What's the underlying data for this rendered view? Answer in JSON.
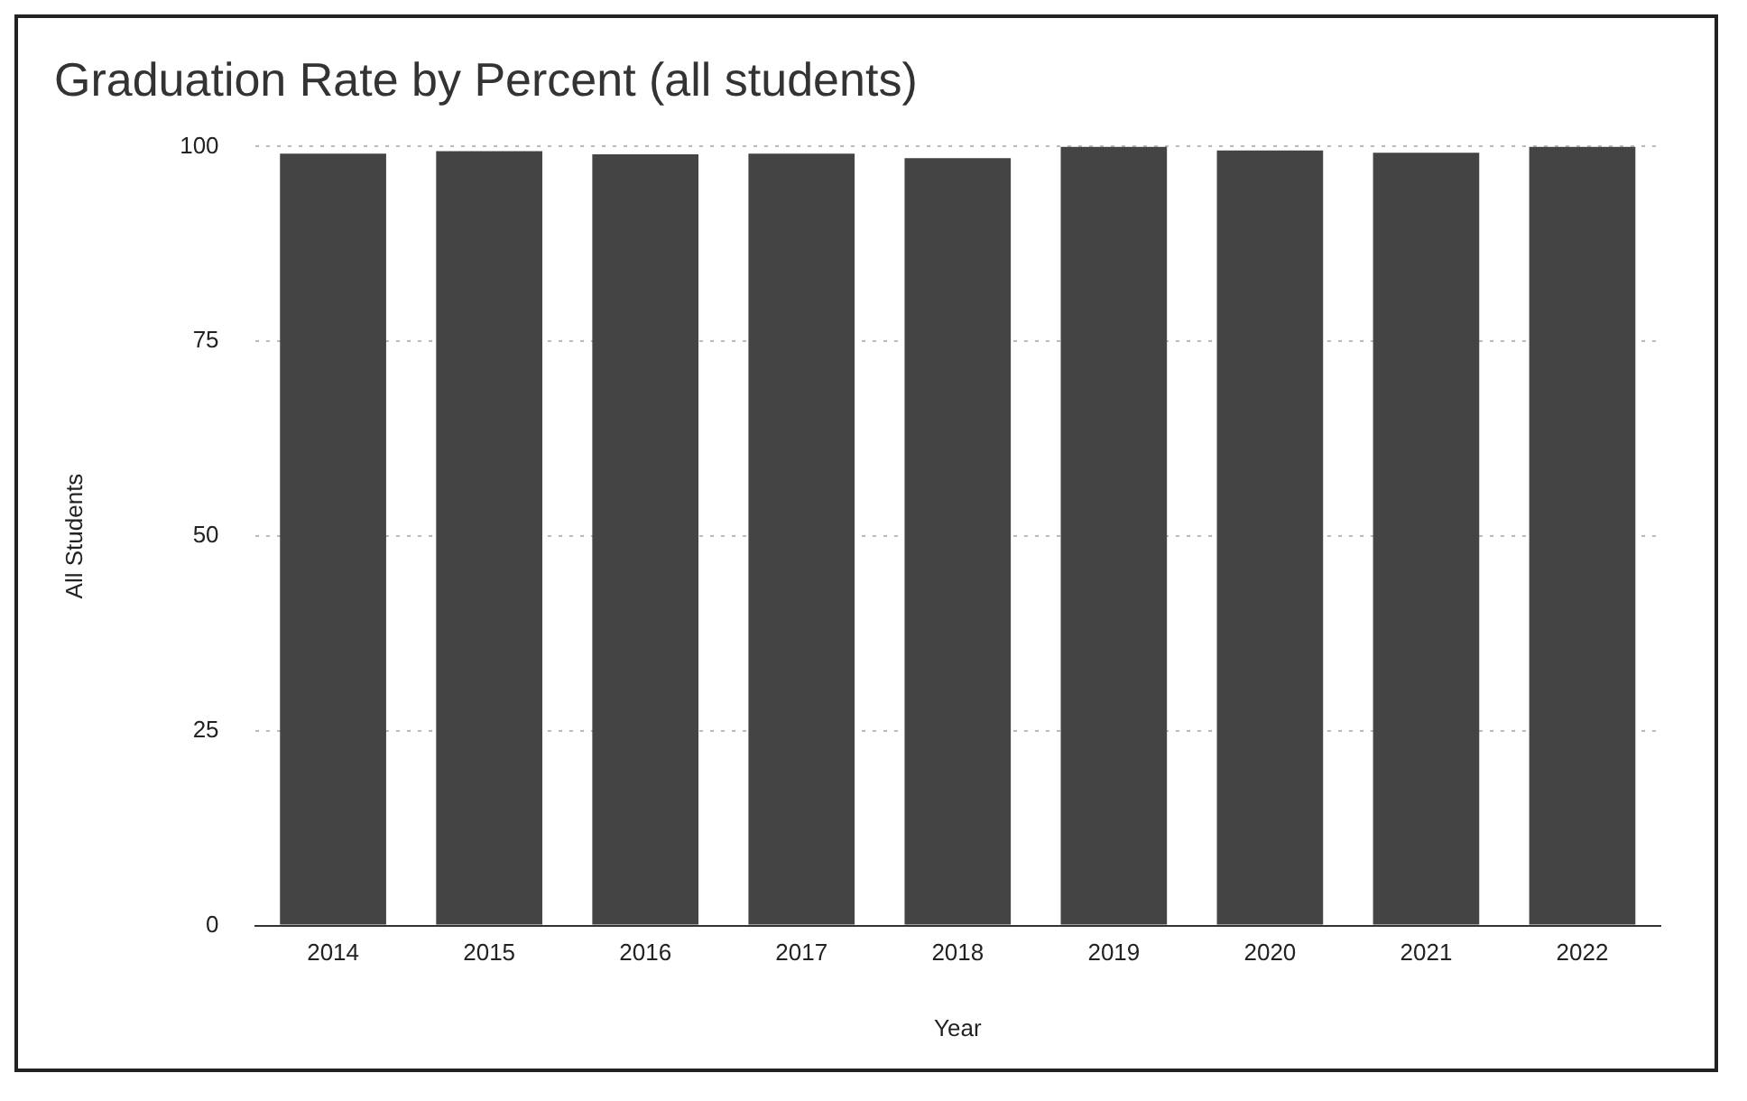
{
  "chart_data": {
    "type": "bar",
    "title": "Graduation Rate by Percent (all students)",
    "xlabel": "Year",
    "ylabel": "All Students",
    "categories": [
      "2014",
      "2015",
      "2016",
      "2017",
      "2018",
      "2019",
      "2020",
      "2021",
      "2022"
    ],
    "values": [
      99.1,
      99.4,
      99.0,
      99.1,
      98.5,
      100,
      99.5,
      99.2,
      100
    ],
    "color": "#444444",
    "ylim": [
      0,
      100
    ],
    "yticks": [
      0,
      25,
      50,
      75,
      100
    ],
    "grid": "y",
    "legend": false
  }
}
